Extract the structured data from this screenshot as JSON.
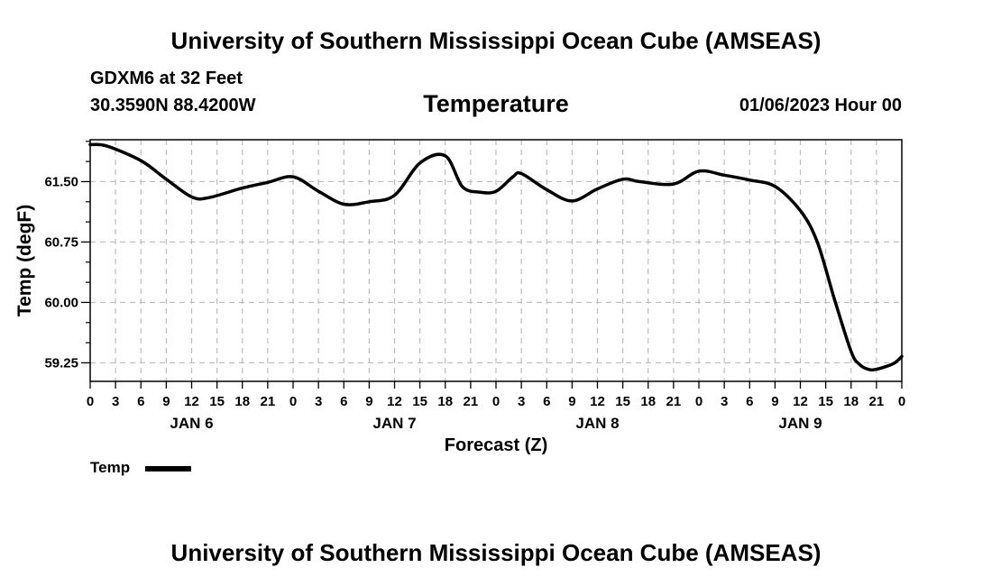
{
  "header": {
    "title": "University of Southern Mississippi Ocean Cube (AMSEAS)",
    "station": "GDXM6 at 32 Feet",
    "coords": "30.3590N  88.4200W",
    "variable": "Temperature",
    "datetime": "01/06/2023 Hour 00"
  },
  "footer": {
    "title": "University of Southern Mississippi Ocean Cube (AMSEAS)"
  },
  "legend": {
    "label": "Temp"
  },
  "chart_data": {
    "type": "line",
    "ylabel": "Temp (degF)",
    "xlabel": "Forecast (Z)",
    "ylim": [
      59.02,
      62.02
    ],
    "xlim_hours": [
      0,
      96
    ],
    "yticks": [
      59.25,
      60.0,
      60.75,
      61.5
    ],
    "ytick_labels": [
      "59.25",
      "60.00",
      "60.75",
      "61.50"
    ],
    "xtick_labels": [
      "0",
      "3",
      "6",
      "9",
      "12",
      "15",
      "18",
      "21",
      "0",
      "3",
      "6",
      "9",
      "12",
      "15",
      "18",
      "21",
      "0",
      "3",
      "6",
      "9",
      "12",
      "15",
      "18",
      "21",
      "0",
      "3",
      "6",
      "9",
      "12",
      "15",
      "18",
      "21",
      "0"
    ],
    "day_labels": [
      "JAN 6",
      "JAN 7",
      "JAN 8",
      "JAN 9"
    ],
    "grid": true,
    "series": [
      {
        "name": "Temp",
        "hours": [
          0,
          2,
          6,
          9,
          12,
          14,
          18,
          21,
          24,
          27,
          30,
          33,
          36,
          39,
          42,
          44,
          46,
          48,
          50,
          51,
          54,
          57,
          60,
          63,
          65,
          69,
          72,
          75,
          78,
          81,
          84,
          86,
          88,
          90,
          91,
          92,
          93,
          95,
          96
        ],
        "values": [
          61.96,
          61.94,
          61.76,
          61.53,
          61.31,
          61.3,
          61.42,
          61.49,
          61.56,
          61.38,
          61.22,
          61.25,
          61.33,
          61.73,
          61.82,
          61.44,
          61.37,
          61.38,
          61.56,
          61.6,
          61.4,
          61.26,
          61.41,
          61.53,
          61.5,
          61.47,
          61.63,
          61.58,
          61.52,
          61.44,
          61.14,
          60.75,
          60.05,
          59.39,
          59.23,
          59.17,
          59.17,
          59.24,
          59.33
        ]
      }
    ]
  }
}
